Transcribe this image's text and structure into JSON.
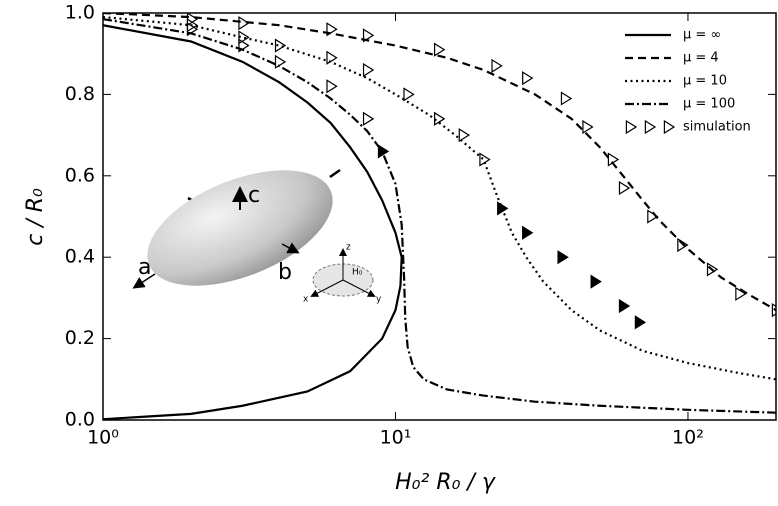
{
  "chart_data": {
    "type": "line",
    "xlabel": "H₀² R₀ / γ",
    "ylabel": "c / R₀",
    "xscale": "log",
    "xlim": [
      1,
      200
    ],
    "ylim": [
      0,
      1
    ],
    "xticks": [
      {
        "value": 1,
        "label": "10⁰"
      },
      {
        "value": 10,
        "label": "10¹"
      },
      {
        "value": 100,
        "label": "10²"
      }
    ],
    "yticks": [
      {
        "value": 0,
        "label": "0.0"
      },
      0.2,
      0.4,
      0.6,
      0.8,
      {
        "value": 1,
        "label": "1.0"
      }
    ],
    "legend": "upper right",
    "series": [
      {
        "name": "μ = ∞",
        "color": "#000000",
        "linestyle": "solid",
        "x": [
          1,
          2,
          3,
          4,
          5,
          6,
          7,
          8,
          9,
          10,
          10.5,
          10.4,
          10,
          9,
          7,
          5,
          3,
          2,
          1
        ],
        "values": [
          0.97,
          0.93,
          0.88,
          0.83,
          0.78,
          0.73,
          0.67,
          0.61,
          0.54,
          0.46,
          0.4,
          0.33,
          0.27,
          0.2,
          0.12,
          0.07,
          0.035,
          0.015,
          0.002
        ]
      },
      {
        "name": "μ = 4",
        "color": "#000000",
        "linestyle": "dashed",
        "x": [
          1,
          2,
          4,
          6,
          10,
          15,
          20,
          30,
          40,
          50,
          60,
          70,
          80,
          100,
          130,
          160,
          200
        ],
        "values": [
          1.0,
          0.99,
          0.97,
          0.95,
          0.92,
          0.89,
          0.86,
          0.8,
          0.74,
          0.67,
          0.6,
          0.54,
          0.49,
          0.42,
          0.35,
          0.31,
          0.27
        ]
      },
      {
        "name": "μ = 10",
        "color": "#000000",
        "linestyle": "dotted",
        "x": [
          1,
          2,
          3,
          4,
          6,
          8,
          10,
          13,
          16,
          20,
          22,
          25,
          28,
          32,
          40,
          50,
          70,
          100,
          150,
          200
        ],
        "values": [
          0.99,
          0.97,
          0.94,
          0.92,
          0.88,
          0.84,
          0.8,
          0.75,
          0.7,
          0.64,
          0.56,
          0.46,
          0.4,
          0.34,
          0.27,
          0.22,
          0.17,
          0.14,
          0.115,
          0.1
        ]
      },
      {
        "name": "μ = 100",
        "color": "#000000",
        "linestyle": "dashdot",
        "x": [
          1,
          2,
          3,
          4,
          5,
          6,
          7,
          8,
          9,
          10,
          10.5,
          10.7,
          10.8,
          11,
          11.5,
          12.5,
          15,
          20,
          30,
          50,
          100,
          200
        ],
        "values": [
          0.985,
          0.95,
          0.91,
          0.87,
          0.83,
          0.79,
          0.75,
          0.71,
          0.66,
          0.58,
          0.48,
          0.35,
          0.25,
          0.18,
          0.13,
          0.1,
          0.075,
          0.06,
          0.045,
          0.035,
          0.025,
          0.018
        ]
      },
      {
        "name": "simulation",
        "color": "#000000",
        "marker": "open-triangle-right",
        "x": [
          2,
          3,
          6,
          8,
          14,
          22,
          28,
          38,
          45,
          55,
          60,
          75,
          95,
          120,
          150,
          200,
          2,
          3,
          4,
          6,
          8,
          11,
          14,
          17,
          20,
          2,
          3,
          4,
          6,
          8
        ],
        "values": [
          0.985,
          0.975,
          0.96,
          0.945,
          0.91,
          0.87,
          0.84,
          0.79,
          0.72,
          0.64,
          0.57,
          0.5,
          0.43,
          0.37,
          0.31,
          0.27,
          0.97,
          0.94,
          0.92,
          0.89,
          0.86,
          0.8,
          0.74,
          0.7,
          0.64,
          0.96,
          0.92,
          0.88,
          0.82,
          0.74
        ]
      },
      {
        "color": "#000000",
        "marker": "filled-triangle-right",
        "x": [
          9,
          23,
          28,
          37,
          48,
          60,
          68
        ],
        "values": [
          0.66,
          0.52,
          0.46,
          0.4,
          0.34,
          0.28,
          0.24
        ]
      }
    ],
    "annotations": [
      "a",
      "b",
      "c",
      "x",
      "y",
      "z",
      "H₀"
    ]
  }
}
